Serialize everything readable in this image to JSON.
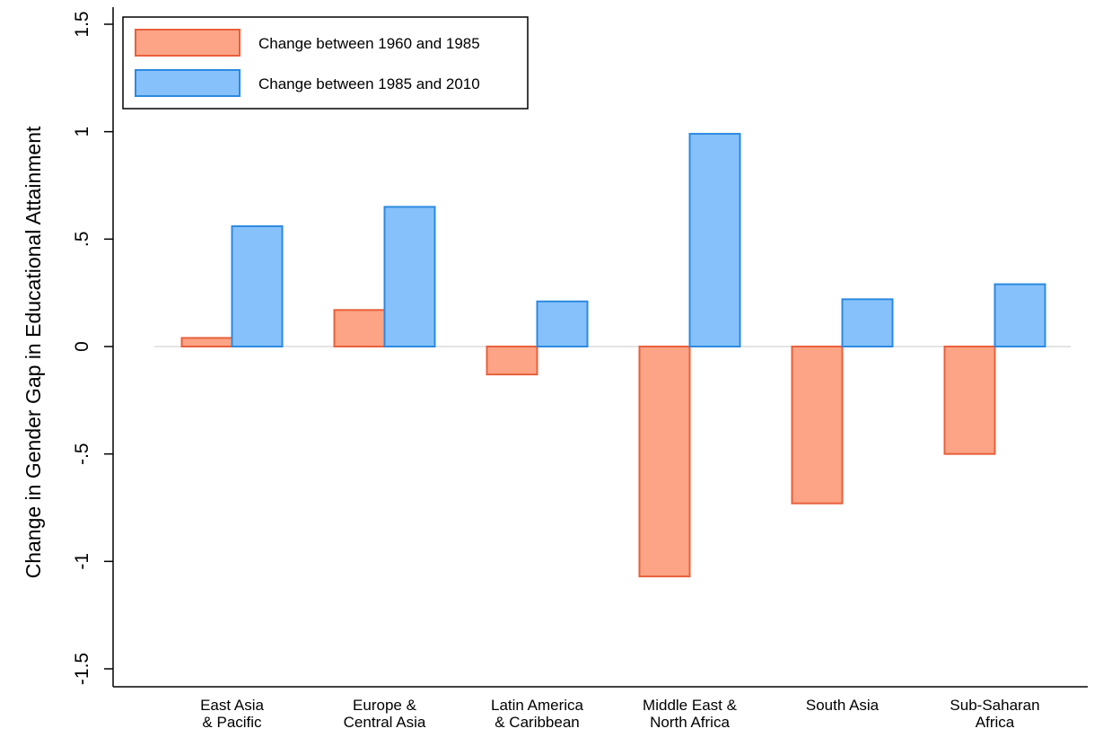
{
  "chart_data": {
    "type": "bar",
    "title": "",
    "xlabel": "",
    "ylabel": "Change in Gender Gap in Educational Attainment",
    "ylim": [
      -1.5,
      1.5
    ],
    "yticks": [
      -1.5,
      -1,
      -0.5,
      0,
      0.5,
      1,
      1.5
    ],
    "ytick_labels": [
      "-1.5",
      "-1",
      "-.5",
      "0",
      ".5",
      "1",
      "1.5"
    ],
    "categories": [
      [
        "East Asia",
        "& Pacific"
      ],
      [
        "Europe &",
        "Central Asia"
      ],
      [
        "Latin America",
        "& Caribbean"
      ],
      [
        "Middle East &",
        "North Africa"
      ],
      [
        "South Asia"
      ],
      [
        "Sub-Saharan",
        "Africa"
      ]
    ],
    "series": [
      {
        "name": "Change between 1960 and 1985",
        "fill": "#fca485",
        "stroke": "#e8603c",
        "values": [
          0.04,
          0.17,
          -0.13,
          -1.07,
          -0.73,
          -0.5
        ]
      },
      {
        "name": "Change between 1985 and 2010",
        "fill": "#87c1fb",
        "stroke": "#2b8ae0",
        "values": [
          0.56,
          0.65,
          0.21,
          0.99,
          0.22,
          0.29
        ]
      }
    ],
    "grid": false,
    "zero_line": true,
    "legend_position": "top-left"
  }
}
